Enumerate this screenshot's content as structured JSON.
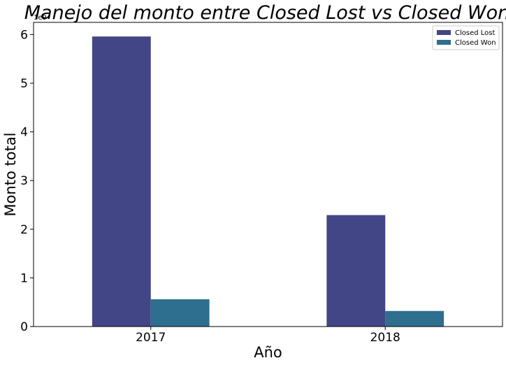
{
  "chart_data": {
    "type": "bar",
    "title": "Manejo del monto entre Closed Lost vs Closed Won",
    "xlabel": "Año",
    "ylabel": "Monto total",
    "y_offset_label": "1e9",
    "categories": [
      "2017",
      "2018"
    ],
    "series": [
      {
        "name": "Closed Lost",
        "color": "#424586",
        "values": [
          5.96,
          2.29
        ]
      },
      {
        "name": "Closed Won",
        "color": "#2e6e8e",
        "values": [
          0.56,
          0.32
        ]
      }
    ],
    "ylim": [
      0,
      6.25
    ],
    "yticks": [
      0,
      1,
      2,
      3,
      4,
      5,
      6
    ],
    "grid": false,
    "legend_position": "top-right"
  }
}
